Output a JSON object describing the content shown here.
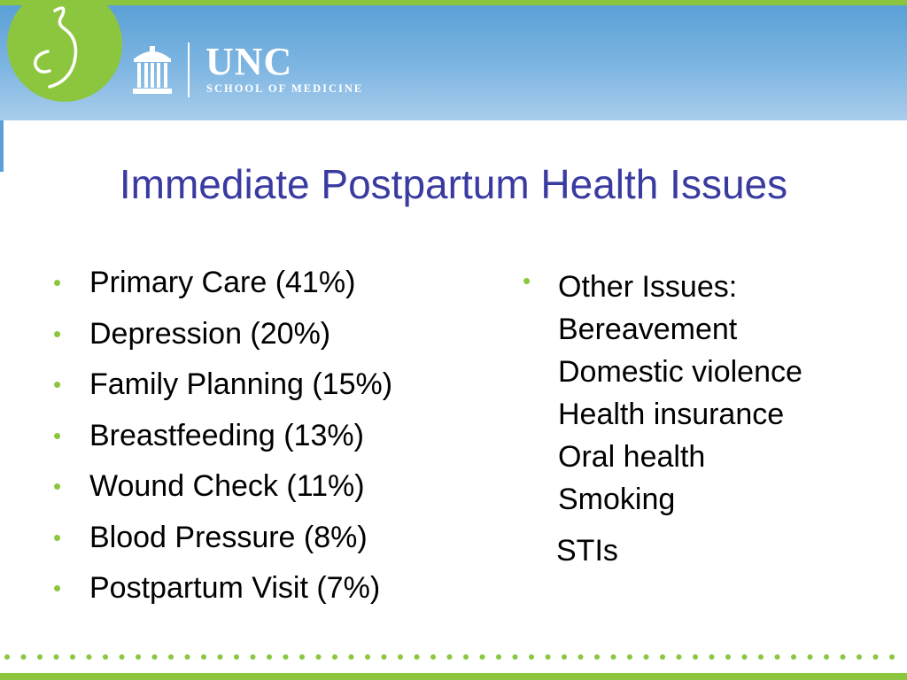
{
  "header": {
    "logo_word": "UNC",
    "logo_subtitle": "SCHOOL OF MEDICINE"
  },
  "slide": {
    "title": "Immediate Postpartum Health Issues",
    "left_items": [
      "Primary Care (41%)",
      "Depression (20%)",
      "Family Planning (15%)",
      "Breastfeeding (13%)",
      "Wound Check (11%)",
      "Blood Pressure (8%)",
      "Postpartum Visit (7%)"
    ],
    "right_lines": [
      "Other Issues:",
      "Bereavement",
      "Domestic violence",
      "Health insurance",
      "Oral health",
      "Smoking",
      "STIs"
    ]
  },
  "colors": {
    "title": "#3a3ba0",
    "accent_green": "#8cc63f",
    "header_blue": "#5aa0d6"
  },
  "icons": [
    "green-circle-logo-icon",
    "old-well-icon"
  ]
}
